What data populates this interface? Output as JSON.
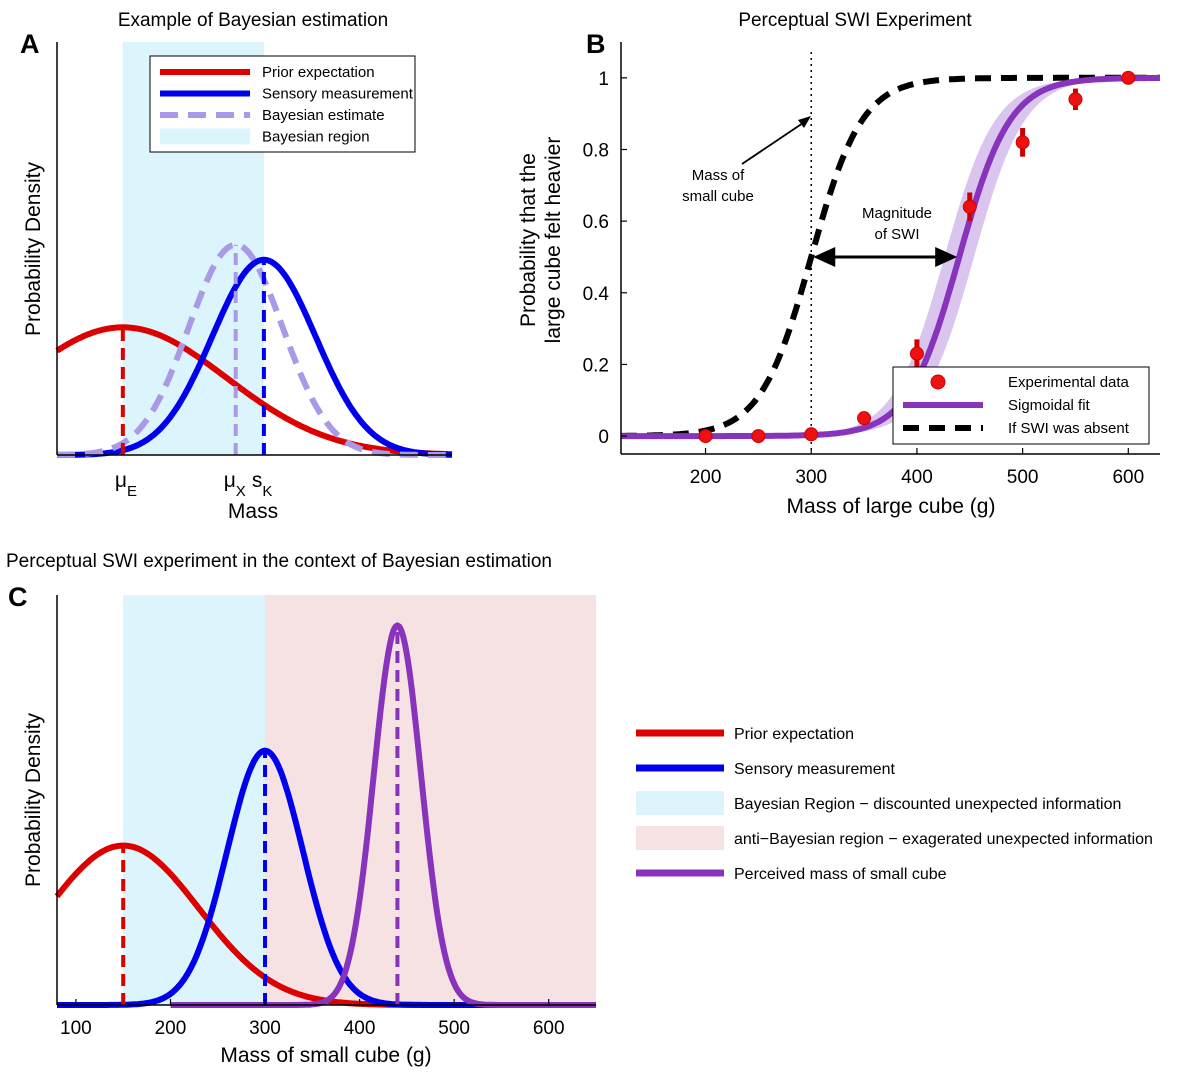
{
  "chart_data": [
    {
      "panel": "A",
      "type": "line",
      "title": "Example of Bayesian estimation",
      "xlabel": "Mass",
      "ylabel": "Probability Density",
      "x_markers": [
        {
          "symbol": "μ",
          "sub": "E",
          "x": 150
        },
        {
          "symbol": "μ",
          "sub": "X",
          "x": 270
        },
        {
          "symbol": "s",
          "sub": "K",
          "x": 300
        }
      ],
      "xlim": [
        80,
        500
      ],
      "ylim": [
        0,
        1.1
      ],
      "shaded_regions": [
        {
          "name": "Bayesian region",
          "from": 150,
          "to": 300,
          "color": "#dcf4fb"
        }
      ],
      "series": [
        {
          "name": "Prior expectation",
          "mean": 150,
          "sd": 110,
          "peak": 0.34,
          "color": "#dd0000",
          "style": "solid",
          "marker_line": 150
        },
        {
          "name": "Sensory measurement",
          "mean": 300,
          "sd": 55,
          "peak": 0.52,
          "color": "#0000ee",
          "style": "solid",
          "marker_line": 300
        },
        {
          "name": "Bayesian estimate",
          "mean": 270,
          "sd": 50,
          "peak": 0.56,
          "color": "#aa99e6",
          "style": "dashed",
          "marker_line": 270
        }
      ],
      "legend": [
        "Prior expectation",
        "Sensory measurement",
        "Bayesian estimate",
        "Bayesian region"
      ],
      "legend_position": "top-right"
    },
    {
      "panel": "B",
      "type": "line",
      "title": "Perceptual SWI Experiment",
      "xlabel": "Mass of large cube (g)",
      "ylabel_lines": [
        "Probability that the",
        "large cube felt heavier"
      ],
      "xlim": [
        120,
        630
      ],
      "ylim": [
        -0.05,
        1.1
      ],
      "xticks": [
        200,
        300,
        400,
        500,
        600
      ],
      "yticks": [
        0,
        0.2,
        0.4,
        0.6,
        0.8,
        1
      ],
      "ytick_labels": [
        "0",
        "0.2",
        "0.4",
        "0.6",
        "0.8",
        "1"
      ],
      "series": [
        {
          "name": "Experimental data",
          "type": "scatter",
          "color": "#ee1111",
          "x": [
            200,
            250,
            300,
            350,
            400,
            450,
            500,
            550,
            600
          ],
          "y": [
            0.0,
            0.0,
            0.005,
            0.05,
            0.23,
            0.64,
            0.82,
            0.94,
            1.0
          ],
          "err": [
            0.0,
            0.0,
            0.01,
            0.015,
            0.04,
            0.04,
            0.04,
            0.03,
            0.0
          ]
        },
        {
          "name": "Sigmoidal fit",
          "type": "line",
          "color": "#8833bb",
          "band_color": "#d9c5ee",
          "midpoint": 440,
          "slope": 24
        },
        {
          "name": "If SWI was absent",
          "type": "line",
          "style": "dashed",
          "color": "#000000",
          "midpoint": 300,
          "slope": 24
        }
      ],
      "reference_line": {
        "x": 300
      },
      "annotations": [
        {
          "lines": [
            "Mass of",
            "small cube"
          ]
        },
        {
          "lines": [
            "Magnitude",
            "of SWI"
          ]
        }
      ],
      "legend": [
        "Experimental data",
        "Sigmoidal fit",
        "If SWI was absent"
      ],
      "legend_position": "bottom-right"
    },
    {
      "panel": "C",
      "type": "line",
      "title": "Perceptual SWI experiment in the context of Bayesian estimation",
      "xlabel": "Mass of small cube (g)",
      "ylabel": "Probability Density",
      "xlim": [
        80,
        650
      ],
      "ylim": [
        0,
        1.08
      ],
      "xticks": [
        100,
        200,
        300,
        400,
        500,
        600
      ],
      "shaded_regions": [
        {
          "name": "Bayesian Region − discounted unexpected information",
          "from": 150,
          "to": 300,
          "color": "#dcf4fb"
        },
        {
          "name": "anti−Bayesian region − exagerated unexpected information",
          "from": 300,
          "to": 650,
          "color": "#f6e2e2"
        }
      ],
      "series": [
        {
          "name": "Prior expectation",
          "mean": 150,
          "sd": 80,
          "peak": 0.42,
          "color": "#dd0000",
          "marker_line": 150
        },
        {
          "name": "Sensory measurement",
          "mean": 300,
          "sd": 40,
          "peak": 0.67,
          "color": "#0000ee",
          "marker_line": 300
        },
        {
          "name": "Perceived mass of small cube",
          "mean": 440,
          "sd": 25,
          "peak": 1.0,
          "color": "#8833bb",
          "marker_line": 440
        }
      ],
      "legend": [
        "Prior expectation",
        "Sensory measurement",
        "Bayesian Region − discounted unexpected information",
        "anti−Bayesian region − exagerated unexpected information",
        "Perceived mass of small cube"
      ],
      "legend_position": "right"
    }
  ]
}
